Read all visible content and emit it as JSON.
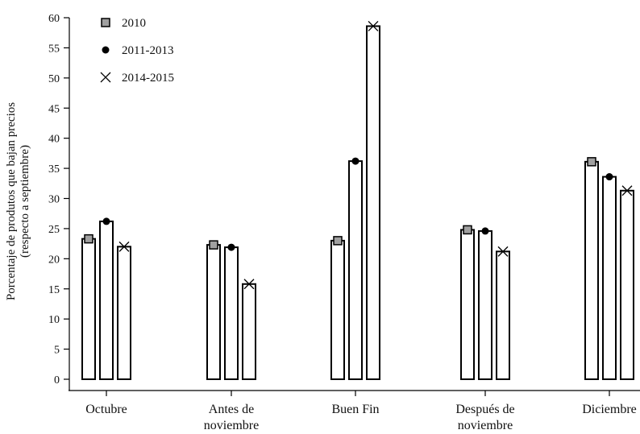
{
  "chart_data": {
    "type": "bar",
    "ylabel": [
      "Porcentaje de produtos que bajan precios",
      "(respecto a septiembre)"
    ],
    "ylim": [
      0,
      60
    ],
    "yticks": [
      0,
      5,
      10,
      15,
      20,
      25,
      30,
      35,
      40,
      45,
      50,
      55,
      60
    ],
    "categories": [
      [
        "Octubre"
      ],
      [
        "Antes de",
        "noviembre"
      ],
      [
        "Buen Fin"
      ],
      [
        "Después de",
        "noviembre"
      ],
      [
        "Diciembre"
      ]
    ],
    "series": [
      {
        "name": "2010",
        "marker": "square",
        "values": [
          23.3,
          22.3,
          23.0,
          24.8,
          36.1
        ]
      },
      {
        "name": "2011-2013",
        "marker": "circle",
        "values": [
          26.2,
          21.9,
          36.2,
          24.6,
          33.6
        ]
      },
      {
        "name": "2014-2015",
        "marker": "x",
        "values": [
          22.0,
          15.8,
          58.6,
          21.2,
          31.3
        ]
      }
    ],
    "legend": "top-left",
    "grid": false,
    "colors": {
      "bar_fill": "#ffffff",
      "bar_stroke": "#000000",
      "square_marker": "#a0a0a0",
      "circle_marker": "#000000"
    }
  }
}
